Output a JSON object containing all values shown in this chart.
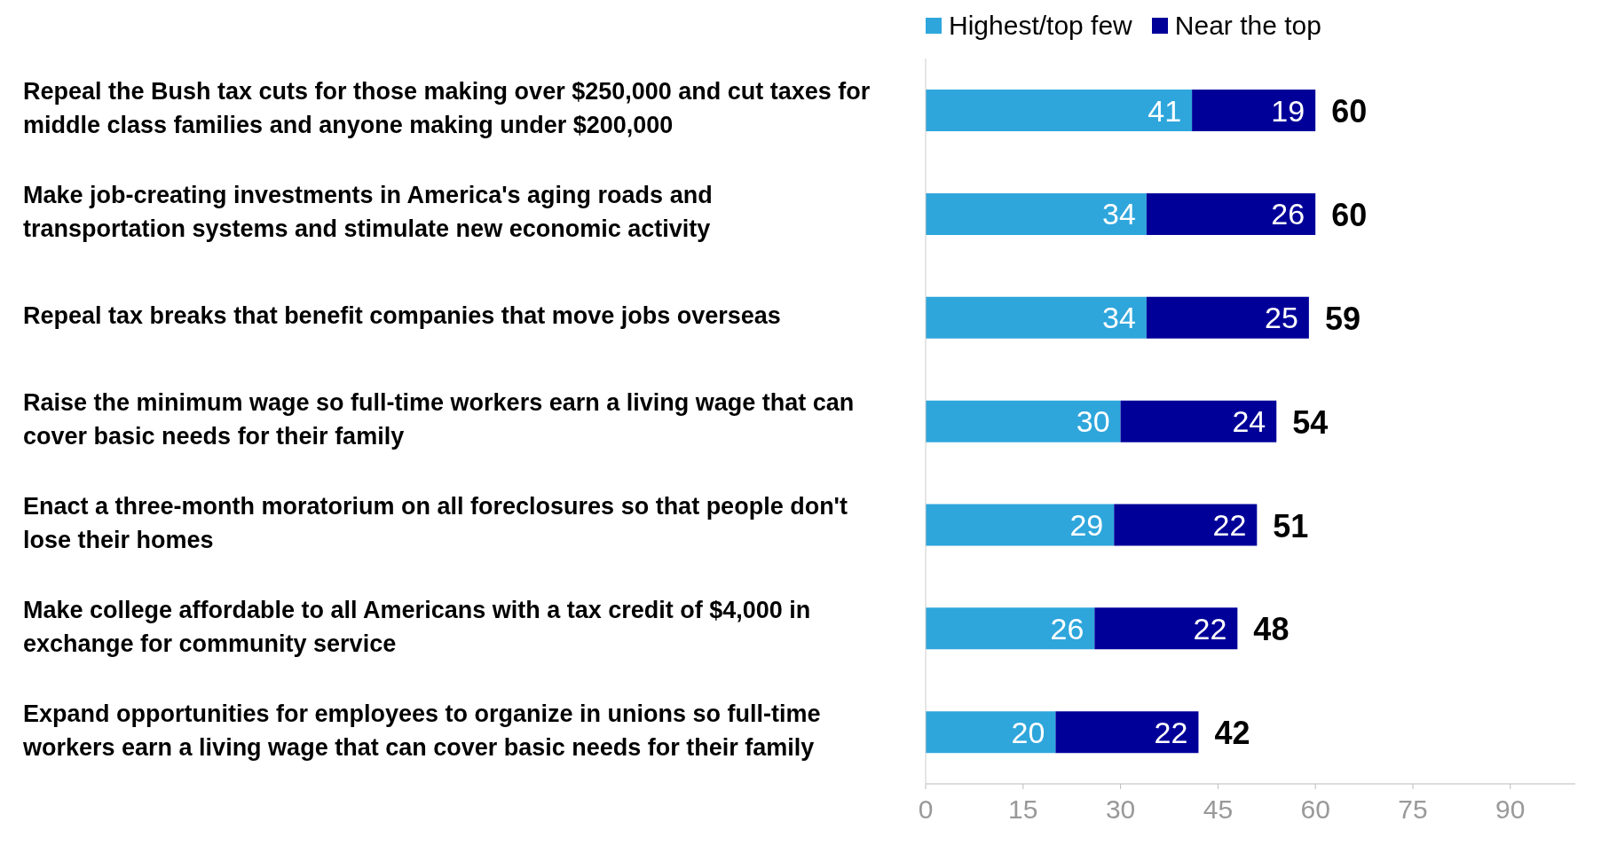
{
  "chart_data": {
    "type": "bar",
    "orientation": "horizontal",
    "stacked": true,
    "categories": [
      "Repeal the Bush tax cuts for those making over $250,000 and cut taxes for middle class families and anyone making under $200,000",
      "Make job-creating investments in America's aging roads and transportation systems and stimulate new economic activity",
      "Repeal tax breaks that benefit companies that move jobs overseas",
      "Raise the minimum wage so full-time workers earn a living wage that can cover basic needs for their family",
      "Enact a three-month moratorium on all foreclosures so that people don't lose their homes",
      "Make college affordable to all Americans with a tax credit of $4,000 in exchange for community service",
      "Expand opportunities for employees to organize in unions so full-time workers earn a living wage that can cover basic needs for their family"
    ],
    "series": [
      {
        "name": "Highest/top few",
        "color": "#2ea6dc",
        "values": [
          41,
          34,
          34,
          30,
          29,
          26,
          20
        ]
      },
      {
        "name": "Near the top",
        "color": "#000099",
        "values": [
          19,
          26,
          25,
          24,
          22,
          22,
          22
        ]
      }
    ],
    "totals": [
      "60",
      "60",
      "59",
      "54",
      "51",
      "48",
      "42"
    ],
    "xlim": [
      0,
      100
    ],
    "xticks": [
      0,
      15,
      30,
      45,
      60,
      75,
      90
    ],
    "data_labels": true,
    "legend": "top",
    "grid": false
  }
}
